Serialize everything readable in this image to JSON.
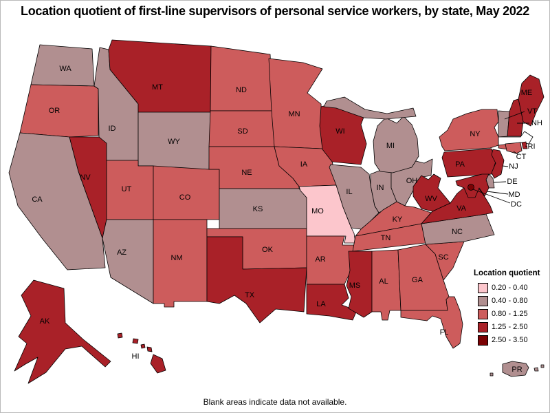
{
  "title": "Location quotient of first-line supervisors of personal service workers, by state, May 2022",
  "footnote": "Blank areas indicate data not available.",
  "legend": {
    "title": "Location quotient",
    "items": [
      {
        "range": "0.20 - 0.40",
        "color": "#FCC6CC"
      },
      {
        "range": "0.40 - 0.80",
        "color": "#B18F90"
      },
      {
        "range": "0.80 - 1.25",
        "color": "#CD5C5C"
      },
      {
        "range": "1.25 - 2.50",
        "color": "#A92128"
      },
      {
        "range": "2.50 - 3.50",
        "color": "#7A0103"
      }
    ]
  },
  "map": {
    "no_data_color": "#FFFFFF",
    "states": [
      {
        "id": "WA",
        "label": "WA",
        "category": 1
      },
      {
        "id": "OR",
        "label": "OR",
        "category": 2
      },
      {
        "id": "CA",
        "label": "CA",
        "category": 1
      },
      {
        "id": "NV",
        "label": "NV",
        "category": 3
      },
      {
        "id": "ID",
        "label": "ID",
        "category": 1
      },
      {
        "id": "MT",
        "label": "MT",
        "category": 3
      },
      {
        "id": "WY",
        "label": "WY",
        "category": 1
      },
      {
        "id": "UT",
        "label": "UT",
        "category": 2
      },
      {
        "id": "CO",
        "label": "CO",
        "category": 2
      },
      {
        "id": "AZ",
        "label": "AZ",
        "category": 1
      },
      {
        "id": "NM",
        "label": "NM",
        "category": 2
      },
      {
        "id": "ND",
        "label": "ND",
        "category": 2
      },
      {
        "id": "SD",
        "label": "SD",
        "category": 2
      },
      {
        "id": "NE",
        "label": "NE",
        "category": 2
      },
      {
        "id": "KS",
        "label": "KS",
        "category": 1
      },
      {
        "id": "OK",
        "label": "OK",
        "category": 2
      },
      {
        "id": "TX",
        "label": "TX",
        "category": 3
      },
      {
        "id": "MN",
        "label": "MN",
        "category": 2
      },
      {
        "id": "IA",
        "label": "IA",
        "category": 2
      },
      {
        "id": "MO",
        "label": "MO",
        "category": 0
      },
      {
        "id": "AR",
        "label": "AR",
        "category": 2
      },
      {
        "id": "LA",
        "label": "LA",
        "category": 3
      },
      {
        "id": "WI",
        "label": "WI",
        "category": 3
      },
      {
        "id": "IL",
        "label": "IL",
        "category": 1
      },
      {
        "id": "IN",
        "label": "IN",
        "category": 1
      },
      {
        "id": "OH",
        "label": "OH",
        "category": 1
      },
      {
        "id": "MI",
        "label": "MI",
        "category": 1
      },
      {
        "id": "KY",
        "label": "KY",
        "category": 2
      },
      {
        "id": "TN",
        "label": "TN",
        "category": 2
      },
      {
        "id": "MS",
        "label": "MS",
        "category": 3
      },
      {
        "id": "AL",
        "label": "AL",
        "category": 2
      },
      {
        "id": "GA",
        "label": "GA",
        "category": 2
      },
      {
        "id": "FL",
        "label": "FL",
        "category": 2
      },
      {
        "id": "SC",
        "label": "SC",
        "category": 2
      },
      {
        "id": "NC",
        "label": "NC",
        "category": 1
      },
      {
        "id": "VA",
        "label": "VA",
        "category": 3
      },
      {
        "id": "WV",
        "label": "WV",
        "category": 3
      },
      {
        "id": "PA",
        "label": "PA",
        "category": 3
      },
      {
        "id": "NY",
        "label": "NY",
        "category": 2
      },
      {
        "id": "ME",
        "label": "ME",
        "category": 3
      },
      {
        "id": "VT",
        "label": "VT",
        "category": 1
      },
      {
        "id": "NH",
        "label": "NH",
        "category": 3
      },
      {
        "id": "MA",
        "label": "",
        "category": null
      },
      {
        "id": "RI",
        "label": "RI",
        "category": 3
      },
      {
        "id": "CT",
        "label": "CT",
        "category": 2
      },
      {
        "id": "NJ",
        "label": "NJ",
        "category": 3
      },
      {
        "id": "DE",
        "label": "DE",
        "category": 1
      },
      {
        "id": "MD",
        "label": "MD",
        "category": 3
      },
      {
        "id": "DC",
        "label": "DC",
        "category": 4
      },
      {
        "id": "AK",
        "label": "AK",
        "category": 3
      },
      {
        "id": "HI",
        "label": "HI",
        "category": 3
      },
      {
        "id": "PR",
        "label": "PR",
        "category": 1
      }
    ]
  }
}
